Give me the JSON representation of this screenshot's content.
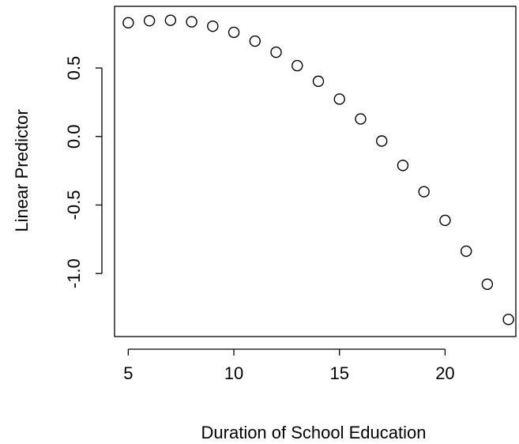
{
  "chart_data": {
    "type": "scatter",
    "title": "",
    "xlabel": "Duration of School Education",
    "ylabel": "Linear Predictor",
    "xlim": [
      4.35,
      23.35
    ],
    "ylim": [
      -1.46,
      0.95
    ],
    "x_ticks": [
      5,
      10,
      15,
      20
    ],
    "x_tick_labels": [
      "5",
      "10",
      "15",
      "20"
    ],
    "y_ticks": [
      -1.0,
      -0.5,
      0.0,
      0.5
    ],
    "y_tick_labels": [
      "-1.0",
      "-0.5",
      "0.0",
      "0.5"
    ],
    "grid": false,
    "legend": "none",
    "marker": "open-circle",
    "color": "#000000",
    "series": [
      {
        "x": [
          5,
          6,
          7,
          8,
          9,
          10,
          11,
          12,
          13,
          14,
          15,
          16,
          17,
          18,
          19,
          20,
          21,
          22,
          23
        ],
        "y": [
          0.83,
          0.845,
          0.848,
          0.837,
          0.805,
          0.76,
          0.696,
          0.615,
          0.517,
          0.403,
          0.273,
          0.128,
          -0.033,
          -0.211,
          -0.403,
          -0.612,
          -0.837,
          -1.078,
          -1.335
        ]
      }
    ]
  }
}
